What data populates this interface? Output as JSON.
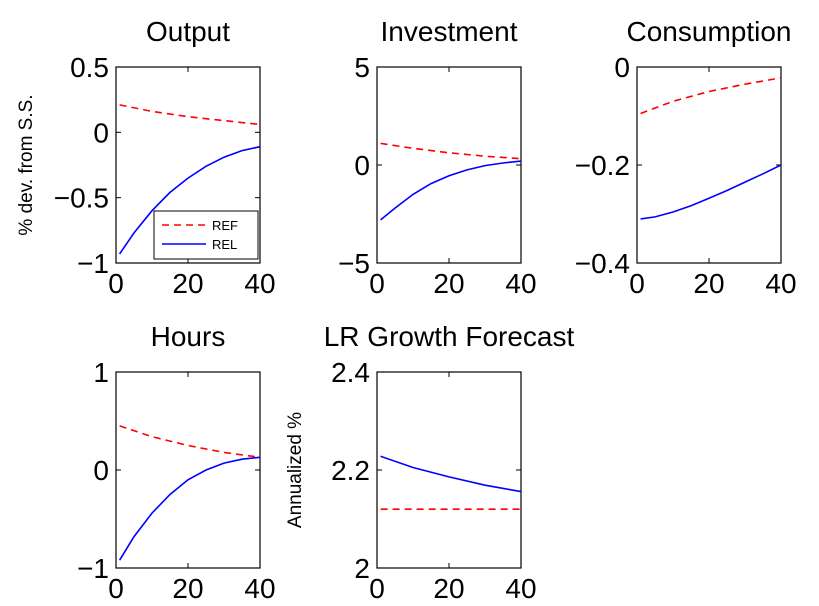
{
  "colors": {
    "REF": "#ff0000",
    "REL": "#0000ff"
  },
  "chart_data": [
    {
      "type": "line",
      "title": "Output",
      "ylabel": "% dev. from S.S.",
      "xlim": [
        0,
        40
      ],
      "ylim": [
        -1,
        0.5
      ],
      "xticks": [
        0,
        20,
        40
      ],
      "xtick_labels": [
        "0",
        "20",
        "40"
      ],
      "yticks": [
        -1,
        -0.5,
        0,
        0.5
      ],
      "ytick_labels": [
        "−1",
        "−0.5",
        "0",
        "0.5"
      ],
      "legend": {
        "placement": "bottom-right",
        "entries": [
          "REF",
          "REL"
        ]
      },
      "series": [
        {
          "name": "REF",
          "style": "dashed",
          "x": [
            1,
            10,
            20,
            30,
            40
          ],
          "y": [
            0.21,
            0.16,
            0.12,
            0.09,
            0.06
          ]
        },
        {
          "name": "REL",
          "style": "solid",
          "x": [
            1,
            5,
            10,
            15,
            20,
            25,
            30,
            35,
            40
          ],
          "y": [
            -0.93,
            -0.77,
            -0.6,
            -0.46,
            -0.35,
            -0.26,
            -0.19,
            -0.14,
            -0.11
          ]
        }
      ]
    },
    {
      "type": "line",
      "title": "Investment",
      "ylabel": "",
      "xlim": [
        0,
        40
      ],
      "ylim": [
        -5,
        5
      ],
      "xticks": [
        0,
        20,
        40
      ],
      "xtick_labels": [
        "0",
        "20",
        "40"
      ],
      "yticks": [
        -5,
        0,
        5
      ],
      "ytick_labels": [
        "−5",
        "0",
        "5"
      ],
      "series": [
        {
          "name": "REF",
          "style": "dashed",
          "x": [
            1,
            10,
            20,
            30,
            40
          ],
          "y": [
            1.1,
            0.85,
            0.62,
            0.45,
            0.32
          ]
        },
        {
          "name": "REL",
          "style": "solid",
          "x": [
            1,
            5,
            10,
            15,
            20,
            25,
            30,
            35,
            40
          ],
          "y": [
            -2.8,
            -2.2,
            -1.5,
            -0.95,
            -0.55,
            -0.25,
            -0.03,
            0.1,
            0.2
          ]
        }
      ]
    },
    {
      "type": "line",
      "title": "Consumption",
      "ylabel": "",
      "xlim": [
        0,
        40
      ],
      "ylim": [
        -0.4,
        0
      ],
      "xticks": [
        0,
        20,
        40
      ],
      "xtick_labels": [
        "0",
        "20",
        "40"
      ],
      "yticks": [
        -0.4,
        -0.2,
        0
      ],
      "ytick_labels": [
        "−0.4",
        "−0.2",
        "0"
      ],
      "series": [
        {
          "name": "REF",
          "style": "dashed",
          "x": [
            1,
            10,
            20,
            30,
            40
          ],
          "y": [
            -0.095,
            -0.07,
            -0.05,
            -0.035,
            -0.022
          ]
        },
        {
          "name": "REL",
          "style": "solid",
          "x": [
            1,
            5,
            10,
            15,
            20,
            25,
            30,
            35,
            40
          ],
          "y": [
            -0.31,
            -0.306,
            -0.296,
            -0.283,
            -0.268,
            -0.252,
            -0.235,
            -0.218,
            -0.2
          ]
        }
      ]
    },
    {
      "type": "line",
      "title": "Hours",
      "ylabel": "",
      "xlim": [
        0,
        40
      ],
      "ylim": [
        -1,
        1
      ],
      "xticks": [
        0,
        20,
        40
      ],
      "xtick_labels": [
        "0",
        "20",
        "40"
      ],
      "yticks": [
        -1,
        0,
        1
      ],
      "ytick_labels": [
        "−1",
        "0",
        "1"
      ],
      "series": [
        {
          "name": "REF",
          "style": "dashed",
          "x": [
            1,
            10,
            20,
            30,
            40
          ],
          "y": [
            0.45,
            0.34,
            0.25,
            0.18,
            0.13
          ]
        },
        {
          "name": "REL",
          "style": "solid",
          "x": [
            1,
            5,
            10,
            15,
            20,
            25,
            30,
            35,
            40
          ],
          "y": [
            -0.92,
            -0.68,
            -0.44,
            -0.25,
            -0.1,
            0.0,
            0.07,
            0.11,
            0.13
          ]
        }
      ]
    },
    {
      "type": "line",
      "title": "LR Growth Forecast",
      "ylabel": "Annualized %",
      "xlim": [
        0,
        40
      ],
      "ylim": [
        2,
        2.4
      ],
      "xticks": [
        0,
        20,
        40
      ],
      "xtick_labels": [
        "0",
        "20",
        "40"
      ],
      "yticks": [
        2,
        2.2,
        2.4
      ],
      "ytick_labels": [
        "2",
        "2.2",
        "2.4"
      ],
      "series": [
        {
          "name": "REF",
          "style": "dashed",
          "x": [
            1,
            40
          ],
          "y": [
            2.12,
            2.12
          ]
        },
        {
          "name": "REL",
          "style": "solid",
          "x": [
            1,
            10,
            20,
            30,
            40
          ],
          "y": [
            2.228,
            2.205,
            2.186,
            2.169,
            2.156
          ]
        }
      ]
    }
  ]
}
